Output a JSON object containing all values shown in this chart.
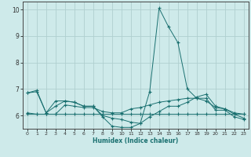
{
  "xlabel": "Humidex (Indice chaleur)",
  "xlim": [
    -0.5,
    23.5
  ],
  "ylim": [
    5.5,
    10.3
  ],
  "yticks": [
    6,
    7,
    8,
    9,
    10
  ],
  "xticks": [
    0,
    1,
    2,
    3,
    4,
    5,
    6,
    7,
    8,
    9,
    10,
    11,
    12,
    13,
    14,
    15,
    16,
    17,
    18,
    19,
    20,
    21,
    22,
    23
  ],
  "bg_color": "#ceeaea",
  "grid_color": "#b0cfcf",
  "line_color": "#1a7070",
  "lines": [
    {
      "x": [
        0,
        1,
        2,
        3,
        4,
        5,
        6,
        7,
        8,
        9,
        10,
        11,
        12,
        13,
        14,
        15,
        16,
        17,
        18,
        19,
        20,
        21,
        22,
        23
      ],
      "y": [
        6.85,
        6.95,
        6.1,
        6.55,
        6.55,
        6.5,
        6.35,
        6.35,
        5.95,
        5.6,
        5.55,
        5.55,
        5.7,
        6.9,
        10.05,
        9.35,
        8.75,
        7.0,
        6.65,
        6.65,
        6.2,
        6.2,
        5.95,
        5.85
      ]
    },
    {
      "x": [
        0,
        1,
        2,
        3,
        4,
        5,
        6,
        7,
        8,
        9,
        10,
        11,
        12,
        13,
        14,
        15,
        16,
        17,
        18,
        19,
        20,
        21,
        22,
        23
      ],
      "y": [
        6.1,
        6.05,
        6.05,
        6.05,
        6.4,
        6.35,
        6.3,
        6.3,
        6.15,
        6.1,
        6.1,
        6.25,
        6.3,
        6.4,
        6.5,
        6.55,
        6.6,
        6.65,
        6.65,
        6.55,
        6.3,
        6.25,
        6.1,
        6.05
      ]
    },
    {
      "x": [
        0,
        1,
        2,
        3,
        4,
        5,
        6,
        7,
        8,
        9,
        10,
        11,
        12,
        13,
        14,
        15,
        16,
        17,
        18,
        19,
        20,
        21,
        22,
        23
      ],
      "y": [
        6.05,
        6.05,
        6.05,
        6.05,
        6.05,
        6.05,
        6.05,
        6.05,
        6.05,
        6.05,
        6.05,
        6.05,
        6.05,
        6.05,
        6.05,
        6.05,
        6.05,
        6.05,
        6.05,
        6.05,
        6.05,
        6.05,
        6.05,
        6.05
      ]
    },
    {
      "x": [
        0,
        1,
        2,
        3,
        4,
        5,
        6,
        7,
        8,
        9,
        10,
        11,
        12,
        13,
        14,
        15,
        16,
        17,
        18,
        19,
        20,
        21,
        22,
        23
      ],
      "y": [
        6.85,
        6.9,
        6.1,
        6.35,
        6.55,
        6.5,
        6.35,
        6.35,
        6.0,
        5.9,
        5.85,
        5.75,
        5.7,
        5.95,
        6.15,
        6.35,
        6.35,
        6.5,
        6.7,
        6.8,
        6.35,
        6.25,
        6.05,
        5.9
      ]
    }
  ]
}
